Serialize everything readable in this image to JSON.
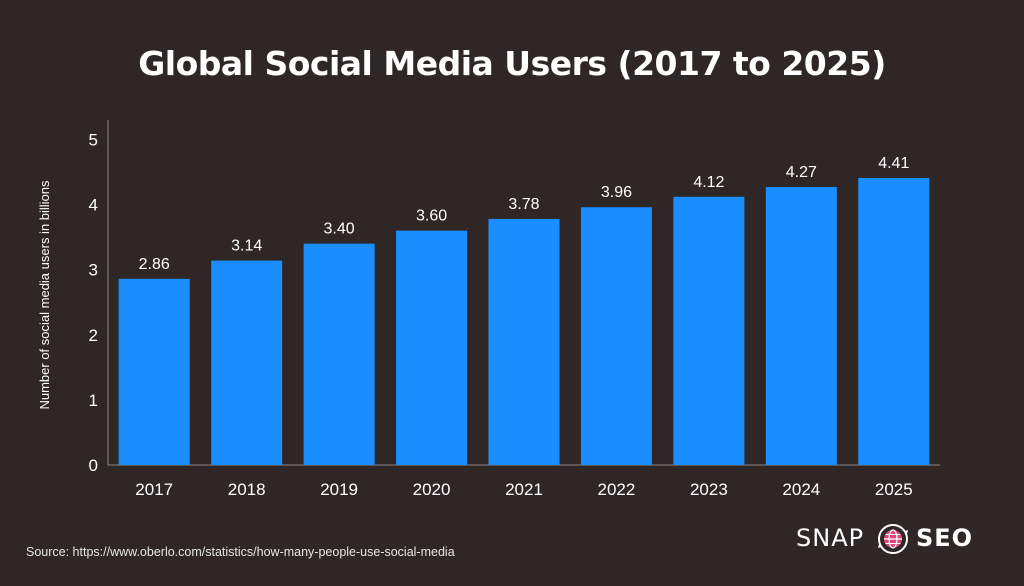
{
  "chart_data": {
    "type": "bar",
    "title": "Global Social Media Users (2017 to 2025)",
    "xlabel": "",
    "ylabel": "Number of social media users in billions",
    "categories": [
      "2017",
      "2018",
      "2019",
      "2020",
      "2021",
      "2022",
      "2023",
      "2024",
      "2025"
    ],
    "values": [
      2.86,
      3.14,
      3.4,
      3.6,
      3.78,
      3.96,
      4.12,
      4.27,
      4.41
    ],
    "data_labels": [
      "2.86",
      "3.14",
      "3.40",
      "3.60",
      "3.78",
      "3.96",
      "4.12",
      "4.27",
      "4.41"
    ],
    "yticks": [
      0,
      1,
      2,
      3,
      4,
      5
    ],
    "ylim": [
      0,
      5.3
    ],
    "grid": false,
    "legend": "none",
    "bar_color": "#1a8eff",
    "background": "#2e2725"
  },
  "source": "Source: https://www.oberlo.com/statistics/how-many-people-use-social-media",
  "brand": {
    "word1": "SNAP",
    "word2": "SEO",
    "icon": "globe-refresh-icon"
  }
}
